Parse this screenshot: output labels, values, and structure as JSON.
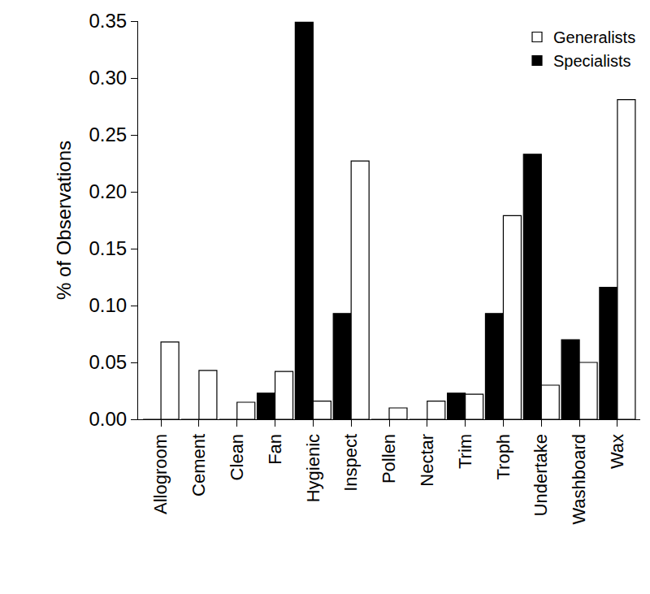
{
  "chart_data": {
    "type": "bar",
    "y_label": "% of Observations",
    "categories": [
      "Allogroom",
      "Cement",
      "Clean",
      "Fan",
      "Hygienic",
      "Inspect",
      "Pollen",
      "Nectar",
      "Trim",
      "Troph",
      "Undertake",
      "Washboard",
      "Wax"
    ],
    "series": [
      {
        "name": "Specialists",
        "color": "#000000",
        "values": [
          0,
          0,
          0,
          0.023,
          0.349,
          0.093,
          0,
          0,
          0.023,
          0.093,
          0.233,
          0.07,
          0.116
        ]
      },
      {
        "name": "Generalists",
        "color": "#ffffff",
        "values": [
          0.068,
          0.043,
          0.015,
          0.042,
          0.016,
          0.227,
          0.01,
          0.016,
          0.022,
          0.179,
          0.03,
          0.05,
          0.281
        ]
      }
    ],
    "ylim": [
      0,
      0.35
    ],
    "yticks": [
      {
        "value": 0,
        "label": "0.00"
      },
      {
        "value": 0.05,
        "label": "0.05"
      },
      {
        "value": 0.1,
        "label": "0.10"
      },
      {
        "value": 0.15,
        "label": "0.15"
      },
      {
        "value": 0.2,
        "label": "0.20"
      },
      {
        "value": 0.25,
        "label": "0.25"
      },
      {
        "value": 0.3,
        "label": "0.30"
      },
      {
        "value": 0.35,
        "label": "0.35"
      }
    ],
    "grid": false,
    "legend": "top-right"
  }
}
